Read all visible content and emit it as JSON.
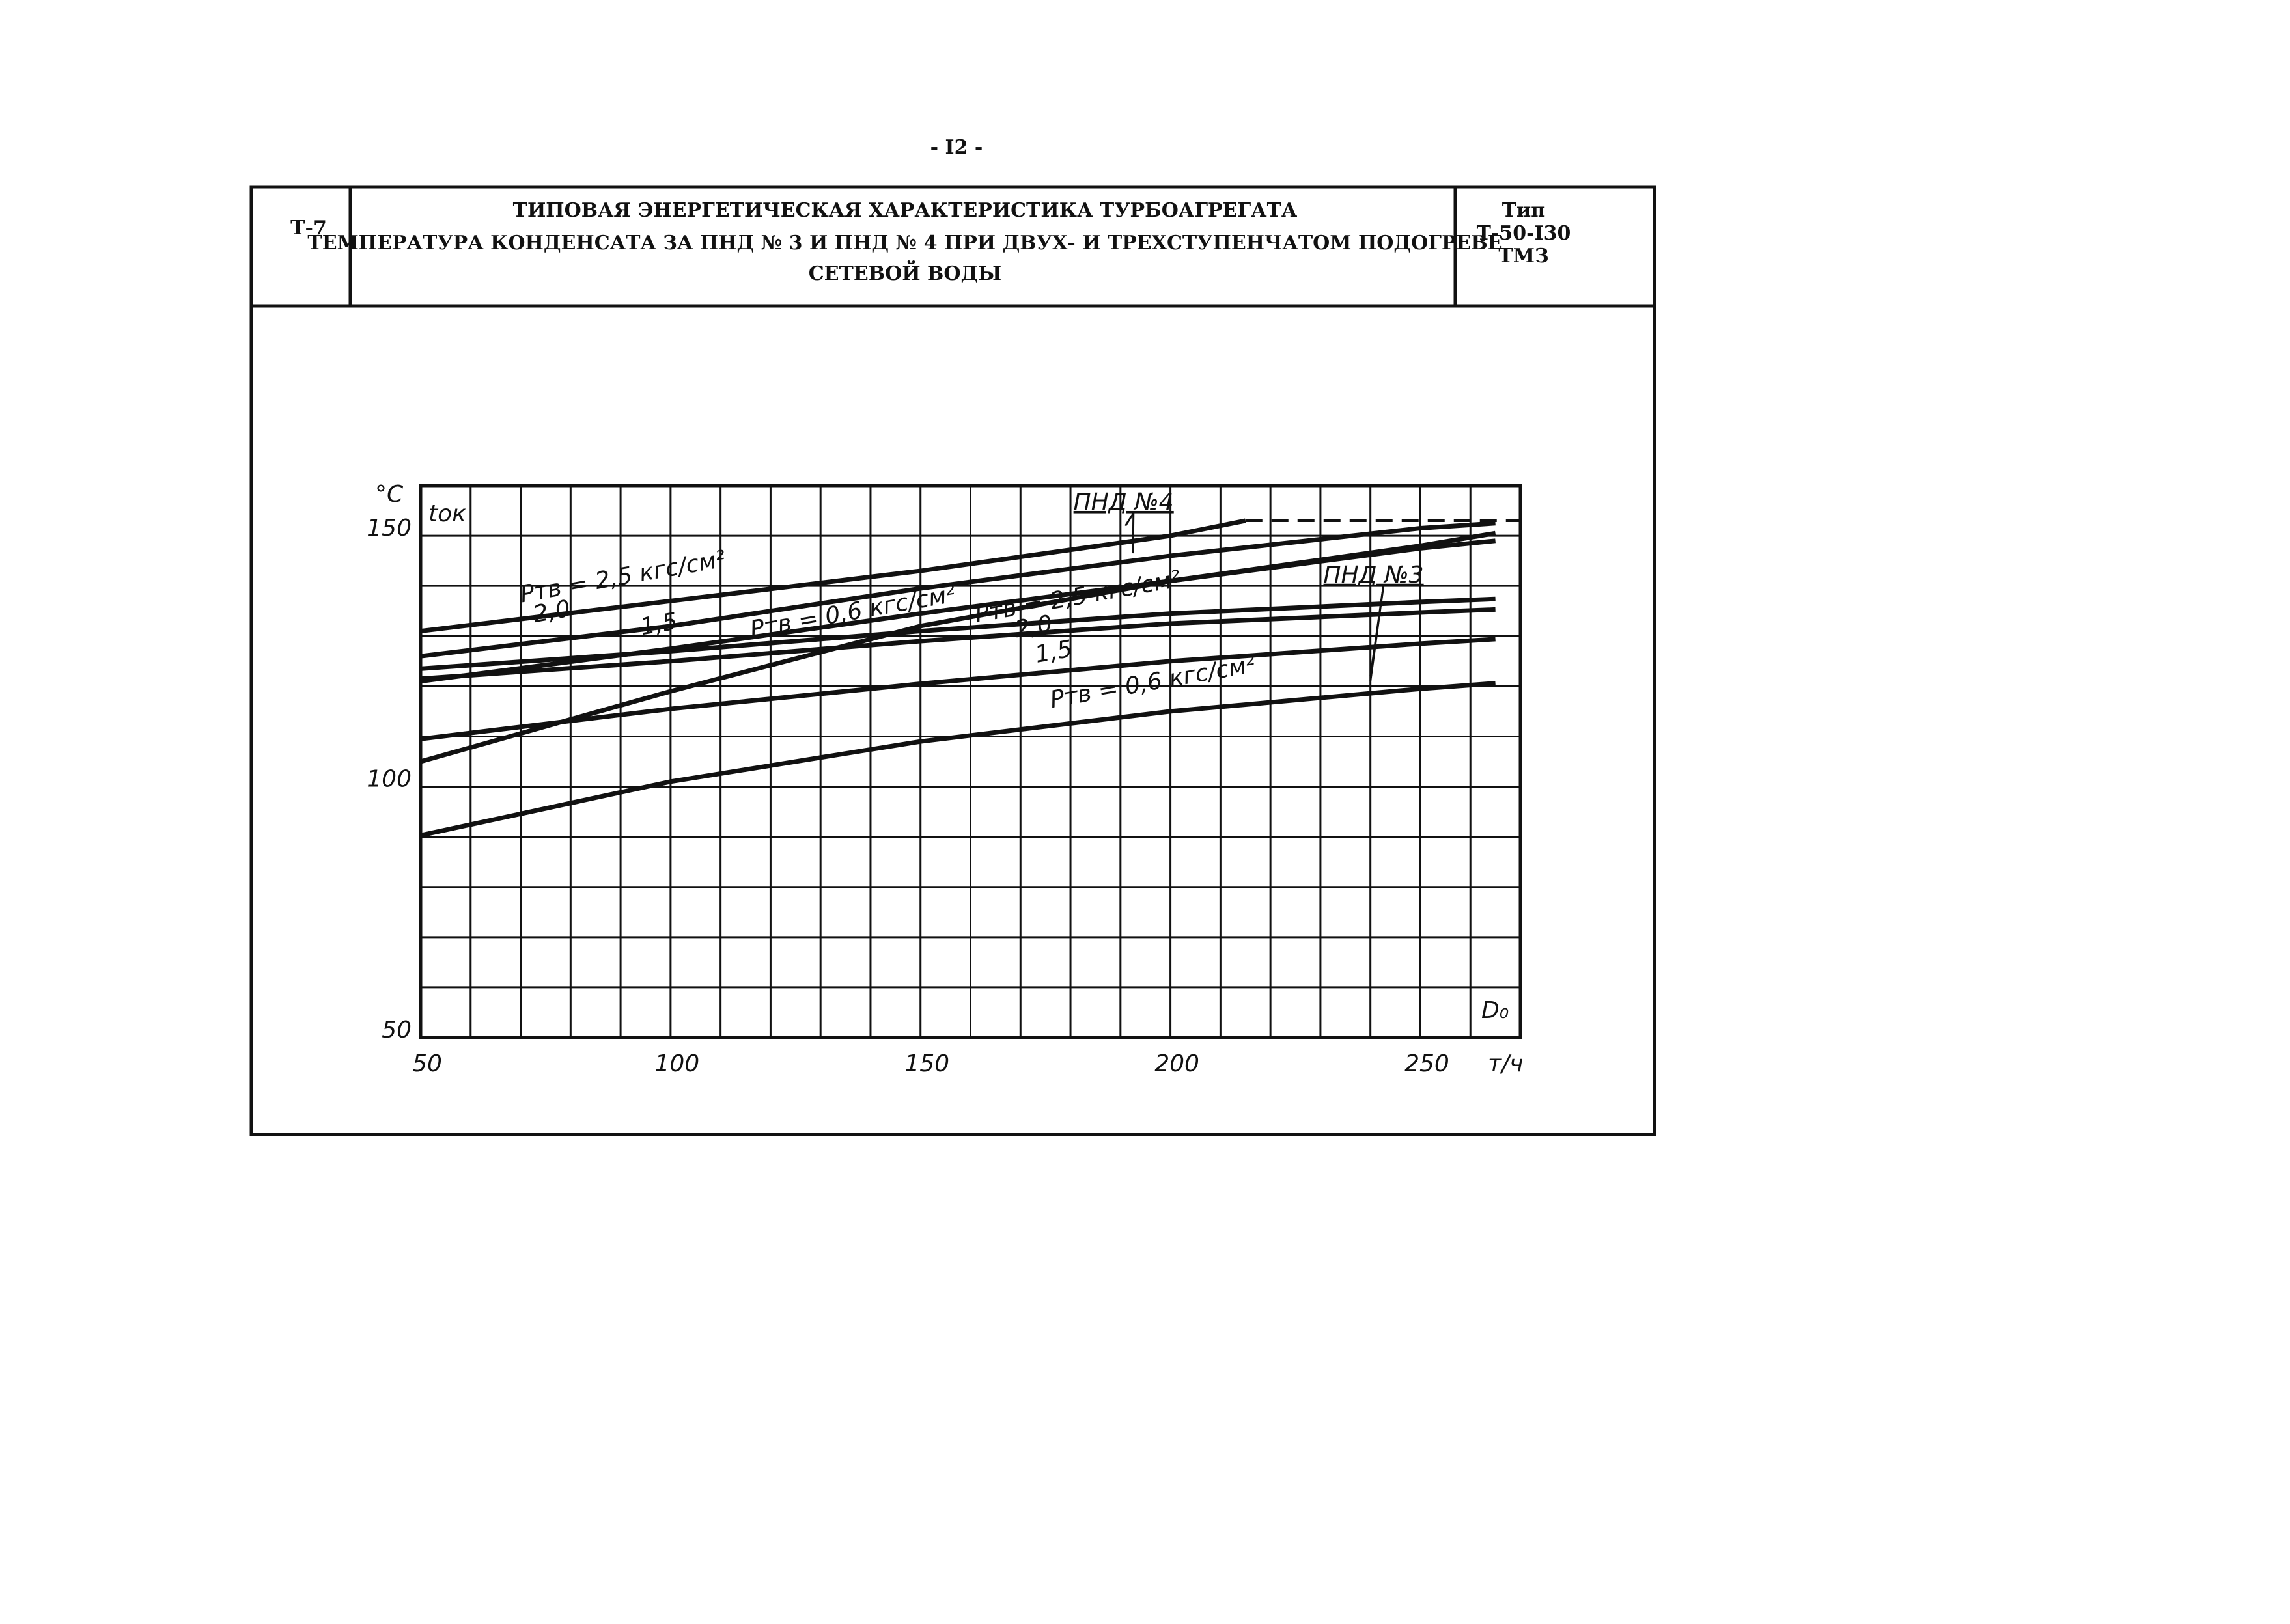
{
  "header": {
    "page_number": "- I2 -",
    "code": "Т-7",
    "title_lines": [
      "ТИПОВАЯ ЭНЕРГЕТИЧЕСКАЯ ХАРАКТЕРИСТИКА ТУРБОАГРЕГАТА",
      "ТЕМПЕРАТУРА КОНДЕНСАТА ЗА ПНД № 3 И ПНД № 4 ПРИ ДВУХ- И ТРЕХСТУПЕНЧАТОМ ПОДОГРЕВЕ",
      "СЕТЕВОЙ ВОДЫ"
    ],
    "type_lines": [
      "Тип",
      "Т-50-I30",
      "ТМЗ"
    ]
  },
  "chart_data": {
    "type": "line",
    "y_unit": "°C",
    "y_label": "tок",
    "x_label": "D₀",
    "x_unit": "т/ч",
    "xlim": [
      50,
      270
    ],
    "ylim": [
      50,
      160
    ],
    "xticks": [
      50,
      100,
      150,
      200,
      250
    ],
    "yticks": [
      50,
      100,
      150
    ],
    "xgrid": [
      50,
      60,
      70,
      80,
      90,
      100,
      110,
      120,
      130,
      140,
      150,
      160,
      170,
      180,
      190,
      200,
      210,
      220,
      230,
      240,
      250,
      260,
      270
    ],
    "ygrid": [
      50,
      60,
      70,
      80,
      90,
      100,
      110,
      120,
      130,
      140,
      150,
      160
    ],
    "grid": true,
    "color": "#111111",
    "annotations": [
      {
        "text": "ПНД №4"
      },
      {
        "text": "ПНД №3"
      }
    ],
    "series": [
      {
        "name": "Pтв = 2,5 кгс/см²",
        "x": [
          50,
          100,
          150,
          200,
          215
        ],
        "values": [
          131,
          137,
          143,
          150,
          153
        ]
      },
      {
        "x": [
          215,
          270
        ],
        "values": [
          153,
          153
        ],
        "dashed": true
      },
      {
        "name": "2,0",
        "x": [
          50,
          100,
          150,
          200,
          250,
          265
        ],
        "values": [
          126,
          132,
          139.5,
          146,
          151.5,
          152.5
        ]
      },
      {
        "name": "1,5",
        "x": [
          50,
          100,
          150,
          200,
          250,
          265
        ],
        "values": [
          121,
          127.5,
          134.5,
          141,
          147.5,
          149
        ]
      },
      {
        "name": "Pтв = 0,6 кгс/см²",
        "x": [
          50,
          100,
          150,
          200,
          250,
          265
        ],
        "values": [
          105,
          119,
          132,
          141,
          148,
          150.5
        ]
      },
      {
        "name": "Pтв = 2,5 кгс/см²",
        "x": [
          50,
          100,
          150,
          200,
          250,
          265
        ],
        "values": [
          123.5,
          127,
          131,
          134.5,
          136.8,
          137.4
        ]
      },
      {
        "name": "2,0",
        "x": [
          50,
          100,
          150,
          200,
          250,
          265
        ],
        "values": [
          121.5,
          125,
          129,
          132.5,
          134.7,
          135.3
        ]
      },
      {
        "name": "1,5",
        "x": [
          50,
          100,
          150,
          200,
          250,
          265
        ],
        "values": [
          109.5,
          115.5,
          120.5,
          125,
          128.5,
          129.4
        ]
      },
      {
        "name": "Pтв = 0,6 кгс/см²",
        "x": [
          50,
          100,
          150,
          200,
          250,
          265
        ],
        "values": [
          90.3,
          101,
          109,
          115,
          119.5,
          120.6
        ]
      }
    ]
  }
}
